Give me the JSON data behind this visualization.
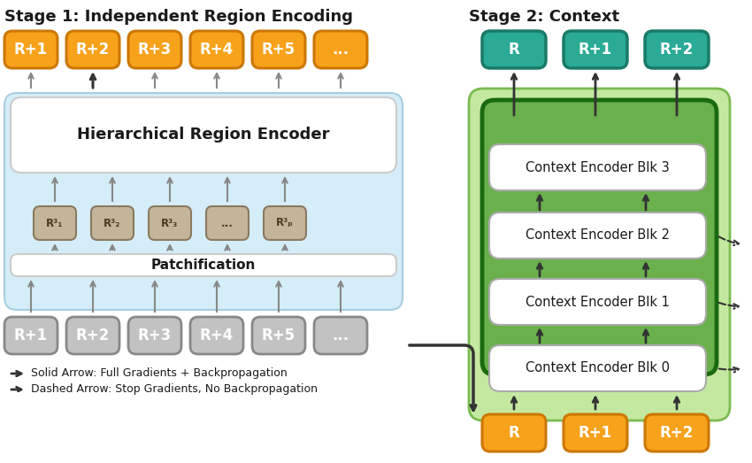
{
  "title_left": "Stage 1: Independent Region Encoding",
  "title_right": "Stage 2: Context",
  "orange_color": "#F7A21B",
  "teal_color": "#2BAA96",
  "gray_color": "#BBBBBB",
  "tan_color": "#C4B49A",
  "green_bg": "#6AB04C",
  "light_green_bg": "#C5E8A0",
  "light_blue_bg": "#D5EDF8",
  "white": "#FFFFFF",
  "dark": "#1A1A1A",
  "legend_solid": "Solid Arrow: Full Gradients + Backpropagation",
  "legend_dashed": "Dashed Arrow: Stop Gradients, No Backpropagation",
  "orange_labels_top": [
    "R+1",
    "R+2",
    "R+3",
    "R+4",
    "R+5",
    "..."
  ],
  "gray_labels_bottom": [
    "R+1",
    "R+2",
    "R+3",
    "R+4",
    "R+5",
    "..."
  ],
  "context_blocks": [
    "Context Encoder Blk 0",
    "Context Encoder Blk 1",
    "Context Encoder Blk 2",
    "Context Encoder Blk 3"
  ],
  "teal_labels": [
    "R",
    "R+1",
    "R+2"
  ],
  "orange_bottom_right": [
    "R",
    "R+1",
    "R+2"
  ],
  "encoder_label": "Hierarchical Region Encoder",
  "patch_label": "Patchification"
}
